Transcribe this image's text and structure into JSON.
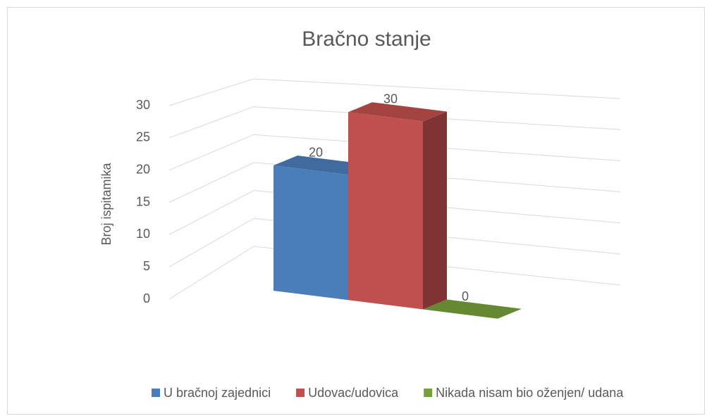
{
  "chart_data": {
    "type": "bar3d",
    "title": "Bračno stanje",
    "y_label": "Broj ispitamika",
    "series": [
      {
        "name": "U bračnoj zajednici",
        "color": "#4a7ebb",
        "values": [
          20
        ]
      },
      {
        "name": "Udovac/udovica",
        "color": "#c0504d",
        "values": [
          30
        ]
      },
      {
        "name": "Nikada nisam bio oženjen/ udana",
        "color": "#77a03b",
        "values": [
          0
        ]
      }
    ],
    "ylim": [
      0,
      30
    ],
    "yticks": [
      0,
      5,
      10,
      15,
      20,
      25,
      30
    ],
    "grid": true,
    "legend": "bottom"
  }
}
